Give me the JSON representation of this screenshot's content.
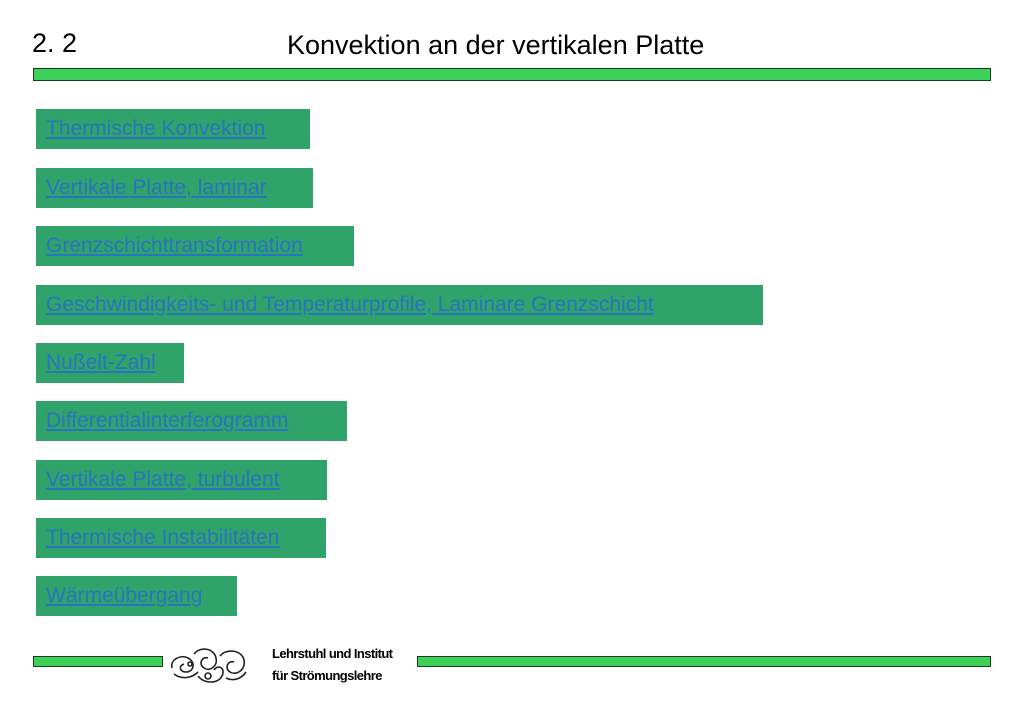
{
  "header": {
    "section_number": "2. 2",
    "title": "Konvektion an der vertikalen Platte"
  },
  "links": [
    "Thermische Konvektion",
    "Vertikale Platte, laminar",
    "Grenzschichttransformation",
    "Geschwindigkeits- und Temperaturprofile, Laminare Grenzschicht",
    "Nußelt-Zahl",
    "Differentialinterferogramm",
    "Vertikale Platte, turbulent",
    "Thermische Instabilitäten",
    "Wärmeübergang"
  ],
  "footer": {
    "institute_line1": "Lehrstuhl und Institut",
    "institute_line2": "für Strömungslehre",
    "logo_icon": "swirl-logo-icon"
  },
  "colors": {
    "bar_green": "#3dd159",
    "link_box_green": "#2fa36a",
    "link_text_blue": "#2a73c0"
  }
}
